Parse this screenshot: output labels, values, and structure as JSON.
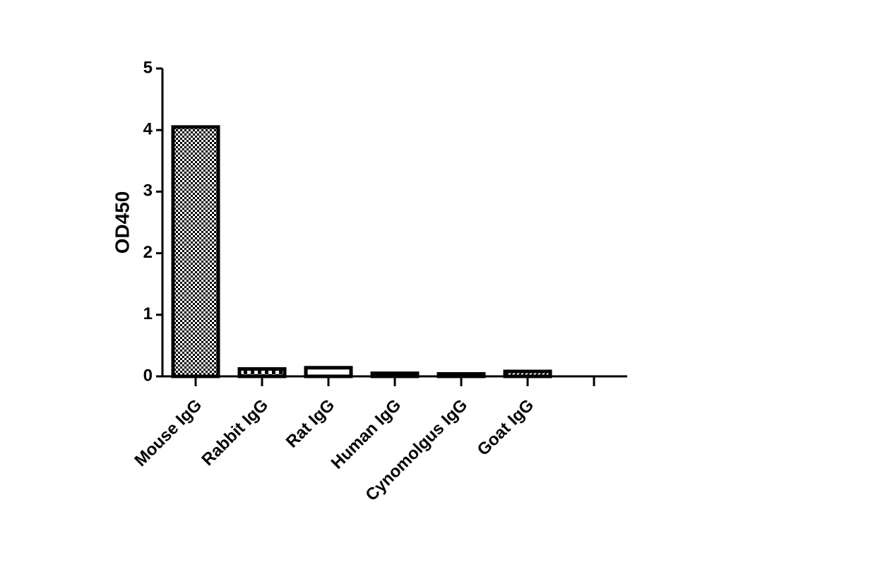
{
  "chart_data": {
    "type": "bar",
    "y_label": "OD450",
    "categories": [
      "Mouse IgG",
      "Rabbit IgG",
      "Rat IgG",
      "Human IgG",
      "Cynomolgus IgG",
      "Goat IgG",
      null
    ],
    "values": [
      4.05,
      0.12,
      0.14,
      0.05,
      0.04,
      0.08,
      null
    ],
    "ylim": [
      0,
      5
    ],
    "yticks": [
      0,
      1,
      2,
      3,
      4,
      5
    ]
  }
}
